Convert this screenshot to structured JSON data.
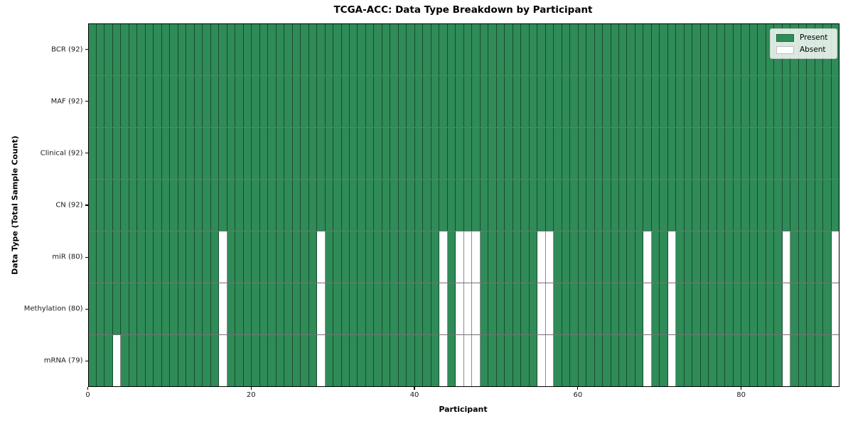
{
  "title": "TCGA-ACC: Data Type Breakdown by Participant",
  "axes": {
    "xlabel": "Participant",
    "ylabel": "Data Type (Total Sample Count)"
  },
  "legend": {
    "present_label": "Present",
    "absent_label": "Absent",
    "position": "upper right"
  },
  "colors": {
    "present": "#2f8b57",
    "absent": "#ffffff",
    "grid_vertical": "rgba(0,0,0,0.45)",
    "grid_horizontal": "rgba(0,0,0,0.55)",
    "frame": "#000000"
  },
  "chart_data": {
    "type": "heatmap",
    "title": "TCGA-ACC: Data Type Breakdown by Participant",
    "xlabel": "Participant",
    "ylabel": "Data Type (Total Sample Count)",
    "n_participants": 92,
    "x_ticks": [
      0,
      20,
      40,
      60,
      80
    ],
    "cell_values": {
      "present": 1,
      "absent": 0
    },
    "legend_entries": [
      "Present",
      "Absent"
    ],
    "grid": true,
    "rows": [
      {
        "label": "BCR (92)",
        "total": 92,
        "absent_participants": []
      },
      {
        "label": "MAF (92)",
        "total": 92,
        "absent_participants": []
      },
      {
        "label": "Clinical (92)",
        "total": 92,
        "absent_participants": []
      },
      {
        "label": "CN (92)",
        "total": 92,
        "absent_participants": []
      },
      {
        "label": "miR (80)",
        "total": 80,
        "absent_participants": [
          16,
          28,
          43,
          45,
          46,
          47,
          55,
          56,
          68,
          71,
          85,
          91
        ]
      },
      {
        "label": "Methylation (80)",
        "total": 80,
        "absent_participants": [
          16,
          28,
          43,
          45,
          46,
          47,
          55,
          56,
          68,
          71,
          85,
          91
        ]
      },
      {
        "label": "mRNA (79)",
        "total": 79,
        "absent_participants": [
          3,
          16,
          28,
          43,
          45,
          46,
          47,
          55,
          56,
          68,
          71,
          85,
          91
        ]
      }
    ]
  }
}
